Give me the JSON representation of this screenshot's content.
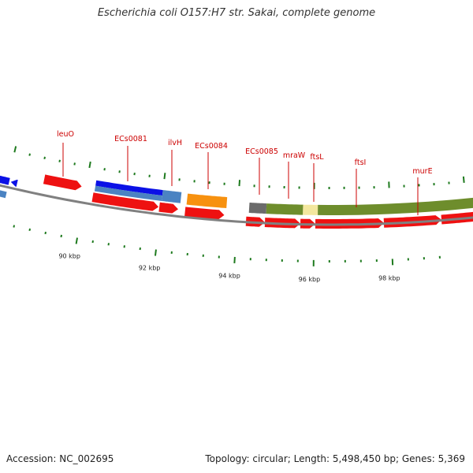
{
  "title": "Escherichia coli O157:H7 str. Sakai, complete genome",
  "footer": {
    "accession": "Accession: NC_002695",
    "summary": "Topology: circular; Length: 5,498,450 bp; Genes: 5,369"
  },
  "colors": {
    "backbone": "#808080",
    "cds": "#ee1111",
    "dark_blue": "#0b11e6",
    "steel_blue": "#4b83c2",
    "orange": "#f7910f",
    "gray": "#6b6b6b",
    "olive": "#6e8d2c",
    "pale_yellow": "#f3e79e",
    "label": "#cc0000",
    "major_tick": "#1e7a1e",
    "minor_tick": "#1e7a1e"
  },
  "scale": {
    "unit": "kbp",
    "major_ticks": [
      {
        "kbp": 90,
        "label": "90 kbp"
      },
      {
        "kbp": 92,
        "label": "92 kbp"
      },
      {
        "kbp": 94,
        "label": "94 kbp"
      },
      {
        "kbp": 96,
        "label": "96 kbp"
      },
      {
        "kbp": 98,
        "label": "98 kbp"
      }
    ]
  },
  "gene_labels": [
    {
      "name": "leuO"
    },
    {
      "name": "ECs0081"
    },
    {
      "name": "ilvH"
    },
    {
      "name": "ECs0084"
    },
    {
      "name": "ECs0085"
    },
    {
      "name": "mraW"
    },
    {
      "name": "ftsL"
    },
    {
      "name": "ftsI"
    },
    {
      "name": "murE"
    }
  ]
}
